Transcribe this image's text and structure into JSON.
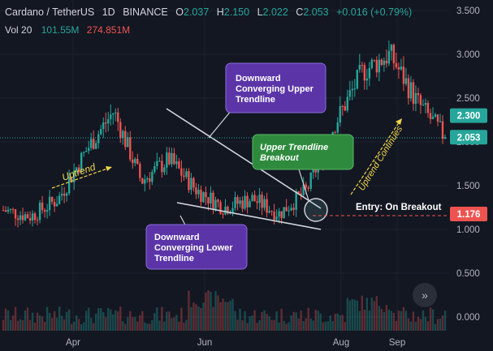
{
  "header": {
    "symbol": "Cardano / TetherUS",
    "interval": "1D",
    "exchange": "BINANCE",
    "open_label": "O",
    "open": "2.037",
    "high_label": "H",
    "high": "2.150",
    "low_label": "L",
    "low": "2.022",
    "close_label": "C",
    "close": "2.053",
    "change": "+0.016 (+0.79%)",
    "volume_label": "Vol 20",
    "volume_1": "101.55M",
    "volume_2": "274.851M"
  },
  "price_axis": {
    "ticks": [
      "3.500",
      "3.000",
      "2.500",
      "2.000",
      "1.500",
      "1.000",
      "0.500",
      "0.000"
    ],
    "tags": [
      {
        "label": "2.300",
        "value": 2.3,
        "color": "#26a69a"
      },
      {
        "label": "2.053",
        "value": 2.053,
        "color": "#26a69a"
      },
      {
        "label": "1.176",
        "value": 1.176,
        "color": "#ef5350"
      }
    ]
  },
  "time_axis": {
    "ticks": [
      "Apr",
      "Jun",
      "Aug",
      "Sep"
    ]
  },
  "annotations": {
    "upper_trendline": "Downward Converging Upper Trendline",
    "lower_trendline": "Downward Converging Lower Trendline",
    "breakout": "Upper Trendline Breakout",
    "uptrend": "Uptrend",
    "uptrend_continues": "Uptrend Continues",
    "entry": "Entry: On Breakout"
  },
  "colors": {
    "background": "#131722",
    "up": "#26a69a",
    "down": "#ef5350",
    "callout_purple": "#5b35a8",
    "callout_green": "#2e8b3e",
    "arrow_yellow": "#f0d64a"
  },
  "chart_data": {
    "type": "candlestick",
    "title": "Cardano / TetherUS",
    "ylim": [
      0,
      3.5
    ],
    "price_levels": {
      "last": 2.053,
      "marked": 2.3,
      "entry": 1.176
    },
    "x": [
      "Apr",
      "Jun",
      "Aug",
      "Sep"
    ],
    "close_path": [
      {
        "x": "Mar",
        "close": 1.22
      },
      {
        "x": "Apr",
        "close": 1.15
      },
      {
        "x": "Apr",
        "close": 1.35
      },
      {
        "x": "May",
        "close": 1.9
      },
      {
        "x": "May",
        "close": 2.35
      },
      {
        "x": "May",
        "close": 1.55
      },
      {
        "x": "Jun",
        "close": 1.8
      },
      {
        "x": "Jun",
        "close": 1.45
      },
      {
        "x": "Jul",
        "close": 1.25
      },
      {
        "x": "Jul",
        "close": 1.35
      },
      {
        "x": "Jul",
        "close": 1.18
      },
      {
        "x": "Aug",
        "close": 1.45
      },
      {
        "x": "Aug",
        "close": 2.2
      },
      {
        "x": "Aug",
        "close": 2.8
      },
      {
        "x": "Sep",
        "close": 3.0
      },
      {
        "x": "Sep",
        "close": 2.45
      },
      {
        "x": "Sep",
        "close": 2.053
      }
    ]
  }
}
